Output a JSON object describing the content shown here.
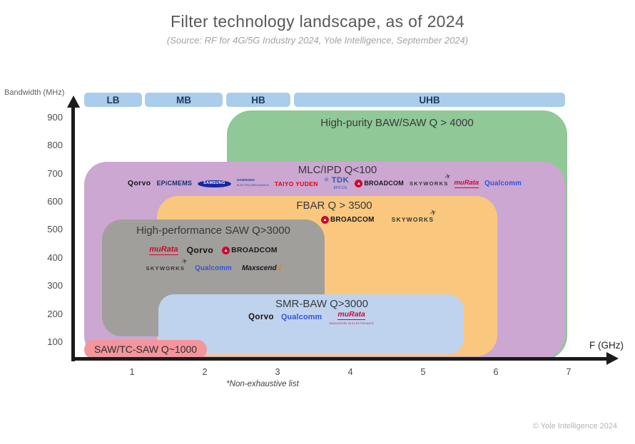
{
  "header": {
    "title": "Filter technology landscape, as of 2024",
    "subtitle": "(Source: RF for 4G/5G Industry 2024, Yole Intelligence, September 2024)"
  },
  "axes": {
    "y_label": "Bandwidth (MHz)",
    "x_label": "F (GHz)",
    "y_ticks": [
      "900",
      "800",
      "700",
      "600",
      "500",
      "400",
      "300",
      "200",
      "100"
    ],
    "x_ticks": [
      "1",
      "2",
      "3",
      "4",
      "5",
      "6",
      "7"
    ]
  },
  "bands": {
    "items": [
      {
        "label": "LB"
      },
      {
        "label": "MB"
      },
      {
        "label": "HB"
      },
      {
        "label": "UHB"
      }
    ]
  },
  "regions": {
    "baw": {
      "label": "High-purity BAW/SAW Q > 4000"
    },
    "mlc": {
      "label": "MLC/IPD Q<100",
      "companies": [
        {
          "id": "qorvo",
          "text": "Qorvo"
        },
        {
          "id": "epicmems",
          "text": "EPiCMEMS"
        },
        {
          "id": "samsung",
          "text": "SAMSUNG"
        },
        {
          "id": "semco",
          "text": "SAMSUNG",
          "sub": "ELECTRO-MECHANICS"
        },
        {
          "id": "taiyo",
          "text": "TAIYO YUDEN"
        },
        {
          "id": "tdk",
          "text": "TDK",
          "sub": "EPCOS",
          "glyph": "❄"
        },
        {
          "id": "broadcom",
          "text": "BROADCOM",
          "glyph": "▲"
        },
        {
          "id": "skyworks",
          "text": "SKYWORKS",
          "glyph": "✈"
        },
        {
          "id": "murata",
          "text": "muRata"
        },
        {
          "id": "qualcomm",
          "text": "Qualcomm"
        }
      ]
    },
    "fbar": {
      "label": "FBAR Q > 3500",
      "companies": [
        {
          "id": "broadcom",
          "text": "BROADCOM",
          "glyph": "▲"
        },
        {
          "id": "skyworks",
          "text": "SKYWORKS",
          "glyph": "✈"
        }
      ]
    },
    "hpsaw": {
      "label": "High-performance SAW Q>3000",
      "companies_row1": [
        {
          "id": "murata",
          "text": "muRata"
        },
        {
          "id": "qorvo",
          "text": "Qorvo"
        },
        {
          "id": "broadcom",
          "text": "BROADCOM",
          "glyph": "▲"
        }
      ],
      "companies_row2": [
        {
          "id": "skyworks",
          "text": "SKYWORKS",
          "glyph": "✈"
        },
        {
          "id": "qualcomm",
          "text": "Qualcomm"
        },
        {
          "id": "maxscend",
          "text": "Maxscend",
          "glyph_after": "//"
        }
      ]
    },
    "smr": {
      "label": "SMR-BAW Q>3000",
      "companies": [
        {
          "id": "qorvo",
          "text": "Qorvo"
        },
        {
          "id": "qualcomm",
          "text": "Qualcomm"
        },
        {
          "id": "murata",
          "text": "muRata",
          "sub": "INNOVATOR IN ELECTRONICS"
        }
      ]
    },
    "tcsaw": {
      "label": "SAW/TC-SAW Q~1000"
    }
  },
  "footnote": "*Non-exhaustive list",
  "copyright": "© Yole Intelligence 2024",
  "colors": {
    "band_pill": "#a9cdeb",
    "band_text": "#1d3b60",
    "baw_green": "#90c897",
    "mlc_purple": "#cba7d2",
    "fbar_orange": "#f9c87e",
    "hpsaw_gray": "#a19f9b",
    "smr_blue": "#bfd3ef",
    "tcsaw_pink": "#f4959c",
    "axis_black": "#1c1c1c"
  },
  "chart_data": {
    "type": "area",
    "description": "Annotated 2D technology landscape: nested rounded rectangles place RF filter technology families by frequency range (x, GHz) and bandwidth (y, MHz); company logos mark suppliers per technology.",
    "title": "Filter technology landscape, as of 2024",
    "subtitle": "(Source: RF for 4G/5G Industry 2024, Yole Intelligence, September 2024)",
    "xlabel": "F (GHz)",
    "ylabel": "Bandwidth (MHz)",
    "xlim": [
      0,
      7.5
    ],
    "ylim": [
      0,
      950
    ],
    "x_ticks": [
      1,
      2,
      3,
      4,
      5,
      6,
      7
    ],
    "y_ticks": [
      100,
      200,
      300,
      400,
      500,
      600,
      700,
      800,
      900
    ],
    "grid": false,
    "legend_position": "none",
    "frequency_bands": [
      {
        "label": "LB",
        "x_ghz": [
          0.35,
          1.15
        ]
      },
      {
        "label": "MB",
        "x_ghz": [
          1.2,
          2.25
        ]
      },
      {
        "label": "HB",
        "x_ghz": [
          2.3,
          3.2
        ]
      },
      {
        "label": "UHB",
        "x_ghz": [
          3.25,
          7.0
        ]
      }
    ],
    "regions": [
      {
        "label": "High-purity BAW/SAW Q > 4000",
        "color": "#90c897",
        "x_ghz": [
          2.3,
          7.0
        ],
        "y_mhz": [
          0,
          925
        ],
        "companies": []
      },
      {
        "label": "MLC/IPD Q<100",
        "color": "#cba7d2",
        "x_ghz": [
          0.35,
          7.0
        ],
        "y_mhz": [
          0,
          740
        ],
        "companies": [
          "Qorvo",
          "EPiCMEMS",
          "Samsung",
          "Samsung Electro-Mechanics",
          "Taiyo Yuden",
          "TDK EPCOS",
          "Broadcom",
          "Skyworks",
          "Murata",
          "Qualcomm"
        ]
      },
      {
        "label": "FBAR Q > 3500",
        "color": "#f9c87e",
        "x_ghz": [
          1.35,
          6.0
        ],
        "y_mhz": [
          0,
          620
        ],
        "companies": [
          "Broadcom",
          "Skyworks"
        ]
      },
      {
        "label": "High-performance SAW Q>3000",
        "color": "#a19f9b",
        "x_ghz": [
          0.6,
          3.65
        ],
        "y_mhz": [
          90,
          540
        ],
        "companies": [
          "Murata",
          "Qorvo",
          "Broadcom",
          "Skyworks",
          "Qualcomm",
          "Maxscend"
        ]
      },
      {
        "label": "SMR-BAW Q>3000",
        "color": "#bfd3ef",
        "x_ghz": [
          1.4,
          5.6
        ],
        "y_mhz": [
          55,
          270
        ],
        "companies": [
          "Qorvo",
          "Qualcomm",
          "Murata"
        ]
      },
      {
        "label": "SAW/TC-SAW Q~1000",
        "color": "#f4959c",
        "x_ghz": [
          0.35,
          2.05
        ],
        "y_mhz": [
          40,
          110
        ],
        "companies": []
      }
    ],
    "footnote": "*Non-exhaustive list",
    "copyright": "© Yole Intelligence 2024"
  }
}
